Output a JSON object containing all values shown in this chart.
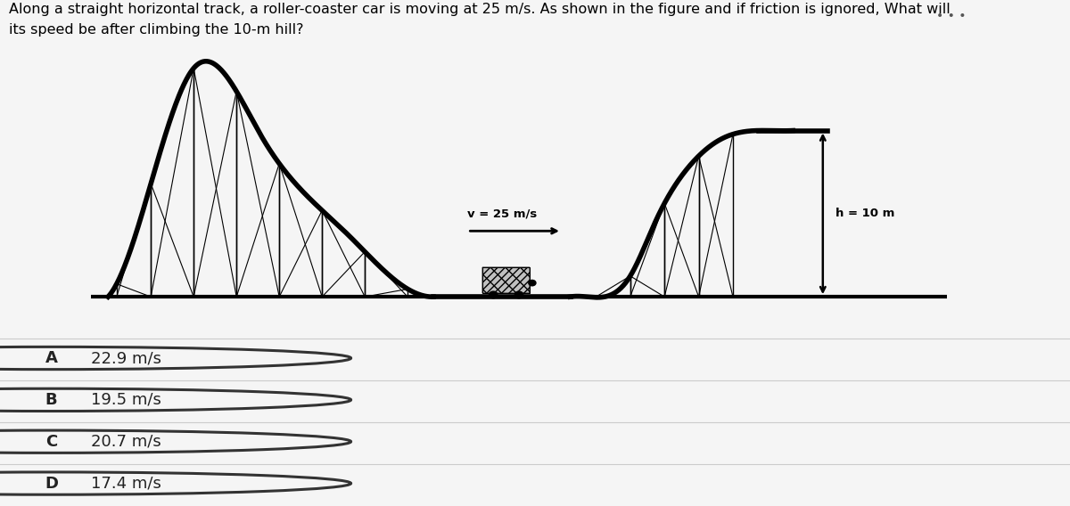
{
  "title_line1": "Along a straight horizontal track, a roller-coaster car is moving at 25 m/s. As shown in the figure and if friction is ignored, What will",
  "title_line2": "its speed be after climbing the 10-m hill?",
  "title_fontsize": 11.5,
  "bg_color": "#f5f5f5",
  "image_bg": "#ffffff",
  "image_border_color": "#cccccc",
  "options": [
    {
      "label": "A",
      "text": "22.9 m/s"
    },
    {
      "label": "B",
      "text": "19.5 m/s"
    },
    {
      "label": "C",
      "text": "20.7 m/s"
    },
    {
      "label": "D",
      "text": "17.4 m/s"
    }
  ],
  "v_label": "v = 25 m/s",
  "h_label": "h = 10 m",
  "option_bg": "#f5f5f5",
  "option_border": "#dddddd"
}
